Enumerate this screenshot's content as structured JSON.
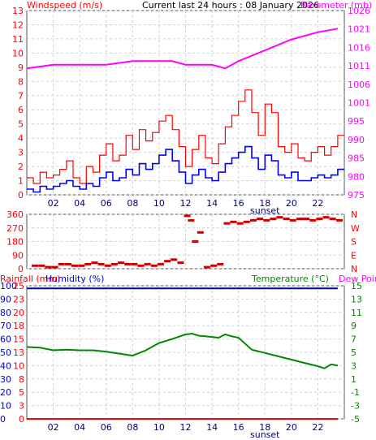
{
  "header": {
    "wind_title": "Windspeed (m/s)",
    "center_title": "Current last 24 hours : 08 January 2026",
    "baro_title": "Barometer (mb)",
    "rain_title": "Rainfall (mm)",
    "humidity_title": "Humidity (%)",
    "temp_title": "Temperature (°C)",
    "dew_title": "Dew Point"
  },
  "colors": {
    "wind": "#ff0000",
    "gust": "#ff0000",
    "wind_avg": "#0000ff",
    "baro": "#ff00ff",
    "direction": "#cc0000",
    "humidity": "#0000aa",
    "temperature": "#008800",
    "rain": "#ff0000",
    "left_axis": "#ff0000",
    "left_axis_2": "#0000cc",
    "right_axis_temp": "#008800",
    "grid": "#d0d0d0"
  },
  "chart_data": [
    {
      "type": "line",
      "name_ref": "wind-baro",
      "x_ticks": [
        "02",
        "04",
        "06",
        "08",
        "10",
        "12",
        "14",
        "16",
        "18",
        "20",
        "22"
      ],
      "x_annotation": "sunset",
      "xlim": [
        0,
        24
      ],
      "ylim_left": [
        0,
        13
      ],
      "yticks_left": [
        "0",
        "1",
        "2",
        "3",
        "4",
        "5",
        "6",
        "7",
        "8",
        "9",
        "10",
        "11",
        "12",
        "13"
      ],
      "ylim_right": [
        975,
        1026
      ],
      "yticks_right": [
        "975",
        "980",
        "985",
        "990",
        "995",
        "1001",
        "1006",
        "1011",
        "1016",
        "1021",
        "1026"
      ],
      "series": [
        {
          "role": "gust",
          "x": [
            0,
            0.5,
            1,
            1.5,
            2,
            2.5,
            3,
            3.5,
            4,
            4.5,
            5,
            5.5,
            6,
            6.5,
            7,
            7.5,
            8,
            8.5,
            9,
            9.5,
            10,
            10.5,
            11,
            11.5,
            12,
            12.5,
            13,
            13.5,
            14,
            14.5,
            15,
            15.5,
            16,
            16.5,
            17,
            17.5,
            18,
            18.5,
            19,
            19.5,
            20,
            20.5,
            21,
            21.5,
            22,
            22.5,
            23,
            23.5
          ],
          "values": [
            1.2,
            0.8,
            1.6,
            1.2,
            1.4,
            1.8,
            2.4,
            1.2,
            0.8,
            2.0,
            1.6,
            2.8,
            3.6,
            2.4,
            2.8,
            4.2,
            3.2,
            4.6,
            3.8,
            4.4,
            5.2,
            5.6,
            4.6,
            3.4,
            2.0,
            3.2,
            4.2,
            2.6,
            2.2,
            3.6,
            4.8,
            5.6,
            6.6,
            7.4,
            5.8,
            4.2,
            6.4,
            5.8,
            3.4,
            3.0,
            3.6,
            2.6,
            2.4,
            3.0,
            3.4,
            2.8,
            3.4,
            4.2
          ]
        },
        {
          "role": "average",
          "x": [
            0,
            0.5,
            1,
            1.5,
            2,
            2.5,
            3,
            3.5,
            4,
            4.5,
            5,
            5.5,
            6,
            6.5,
            7,
            7.5,
            8,
            8.5,
            9,
            9.5,
            10,
            10.5,
            11,
            11.5,
            12,
            12.5,
            13,
            13.5,
            14,
            14.5,
            15,
            15.5,
            16,
            16.5,
            17,
            17.5,
            18,
            18.5,
            19,
            19.5,
            20,
            20.5,
            21,
            21.5,
            22,
            22.5,
            23,
            23.5
          ],
          "values": [
            0.4,
            0.2,
            0.6,
            0.4,
            0.6,
            0.8,
            1.0,
            0.6,
            0.4,
            0.8,
            0.6,
            1.2,
            1.6,
            1.0,
            1.2,
            1.8,
            1.4,
            2.2,
            1.8,
            2.2,
            2.8,
            3.2,
            2.4,
            1.6,
            0.8,
            1.4,
            1.8,
            1.2,
            1.0,
            1.6,
            2.2,
            2.6,
            3.0,
            3.4,
            2.6,
            1.8,
            2.8,
            2.4,
            1.4,
            1.2,
            1.6,
            1.0,
            1.0,
            1.2,
            1.4,
            1.2,
            1.4,
            1.8
          ]
        },
        {
          "role": "barometer",
          "x": [
            0,
            2,
            4,
            6,
            8,
            10,
            11,
            12,
            14,
            15,
            16,
            18,
            20,
            22,
            23.5
          ],
          "values": [
            1010,
            1011,
            1011,
            1011,
            1012,
            1012,
            1012,
            1011,
            1011,
            1010,
            1012,
            1015,
            1018,
            1020,
            1021
          ]
        }
      ]
    },
    {
      "type": "scatter",
      "name_ref": "wind-direction",
      "xlim": [
        0,
        24
      ],
      "ylim": [
        0,
        360
      ],
      "yticks": [
        "0",
        "90",
        "180",
        "270",
        "360"
      ],
      "yticks_right": [
        "N",
        "E",
        "S",
        "W",
        "N"
      ],
      "x": [
        0.5,
        1,
        1.5,
        2,
        2.5,
        3,
        3.5,
        4,
        4.5,
        5,
        5.5,
        6,
        6.5,
        7,
        7.5,
        8,
        8.5,
        9,
        9.5,
        10,
        10.5,
        11,
        11.5,
        12,
        12.3,
        12.6,
        13,
        13.5,
        14,
        14.5,
        15,
        15.5,
        16,
        16.5,
        17,
        17.5,
        18,
        18.5,
        19,
        19.5,
        20,
        20.5,
        21,
        21.5,
        22,
        22.5,
        23,
        23.5
      ],
      "values": [
        20,
        20,
        10,
        10,
        30,
        30,
        20,
        20,
        30,
        40,
        30,
        20,
        30,
        40,
        30,
        30,
        20,
        30,
        20,
        30,
        50,
        60,
        40,
        350,
        320,
        180,
        240,
        10,
        20,
        30,
        300,
        310,
        300,
        310,
        320,
        330,
        320,
        330,
        340,
        330,
        320,
        330,
        330,
        320,
        330,
        340,
        330,
        320
      ]
    },
    {
      "type": "line",
      "name_ref": "rain-humidity-temp",
      "x_ticks": [
        "02",
        "04",
        "06",
        "08",
        "10",
        "12",
        "14",
        "16",
        "18",
        "20",
        "22"
      ],
      "x_annotation": "sunset",
      "xlim": [
        0,
        24
      ],
      "ylim_left": [
        0,
        100
      ],
      "yticks_left": [
        "0",
        "10",
        "20",
        "30",
        "40",
        "50",
        "60",
        "70",
        "80",
        "90",
        "100"
      ],
      "yticks_left_2": [
        "0",
        "3",
        "5",
        "8",
        "10",
        "13",
        "15",
        "18",
        "20",
        "23",
        "25"
      ],
      "ylim_right": [
        -5,
        15
      ],
      "yticks_right": [
        "-5",
        "-3",
        "-1",
        "1",
        "3",
        "5",
        "7",
        "9",
        "11",
        "13",
        "15"
      ],
      "series": [
        {
          "role": "humidity",
          "x": [
            0,
            23.5
          ],
          "values": [
            98,
            98
          ]
        },
        {
          "role": "temperature",
          "x": [
            0,
            1,
            2,
            3,
            4,
            5,
            6,
            7,
            8,
            9,
            10,
            11,
            12,
            12.5,
            13,
            13.5,
            14,
            14.5,
            15,
            15.5,
            16,
            17,
            18,
            19,
            20,
            21,
            22,
            22.5,
            23,
            23.5
          ],
          "values": [
            5.8,
            5.7,
            5.3,
            5.4,
            5.3,
            5.3,
            5.1,
            4.8,
            4.5,
            5.3,
            6.4,
            7.0,
            7.7,
            7.8,
            7.5,
            7.4,
            7.3,
            7.2,
            7.7,
            7.4,
            7.2,
            5.4,
            4.9,
            4.4,
            3.9,
            3.4,
            2.9,
            2.6,
            3.2,
            3.0
          ]
        },
        {
          "role": "rainfall",
          "x": [
            0,
            23.5
          ],
          "values": [
            0,
            0
          ]
        }
      ]
    }
  ]
}
